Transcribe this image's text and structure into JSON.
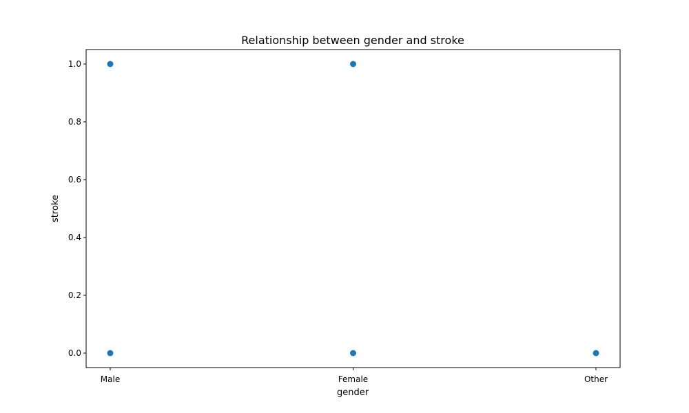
{
  "chart_data": {
    "type": "scatter",
    "title": "Relationship between gender and stroke",
    "xlabel": "gender",
    "ylabel": "stroke",
    "categories": [
      "Male",
      "Female",
      "Other"
    ],
    "yticks": [
      "0.0",
      "0.2",
      "0.4",
      "0.6",
      "0.8",
      "1.0"
    ],
    "ylim": [
      -0.05,
      1.05
    ],
    "grid": false,
    "points": [
      {
        "x": "Male",
        "y": 1
      },
      {
        "x": "Male",
        "y": 0
      },
      {
        "x": "Female",
        "y": 1
      },
      {
        "x": "Female",
        "y": 0
      },
      {
        "x": "Other",
        "y": 0
      }
    ],
    "marker_color": "#1f77b4"
  }
}
